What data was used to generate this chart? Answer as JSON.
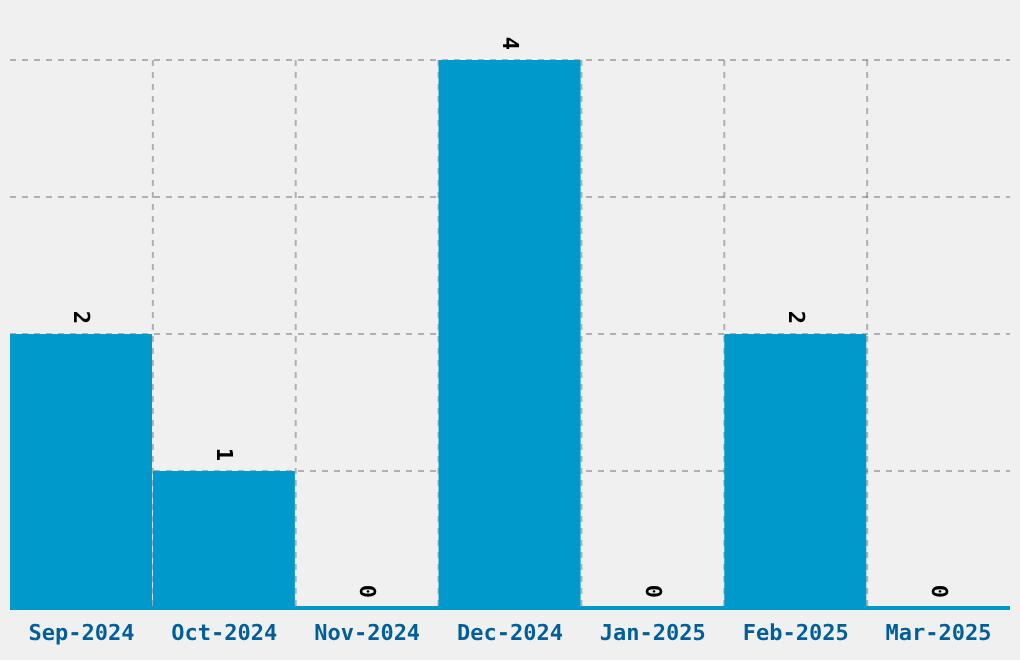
{
  "chart_data": {
    "type": "bar",
    "categories": [
      "Sep-2024",
      "Oct-2024",
      "Nov-2024",
      "Dec-2024",
      "Jan-2025",
      "Feb-2025",
      "Mar-2025"
    ],
    "values": [
      2,
      1,
      0,
      4,
      0,
      2,
      0
    ],
    "color": "#0099cc",
    "data_labels": true,
    "grid": true,
    "tick_labels": "x"
  }
}
